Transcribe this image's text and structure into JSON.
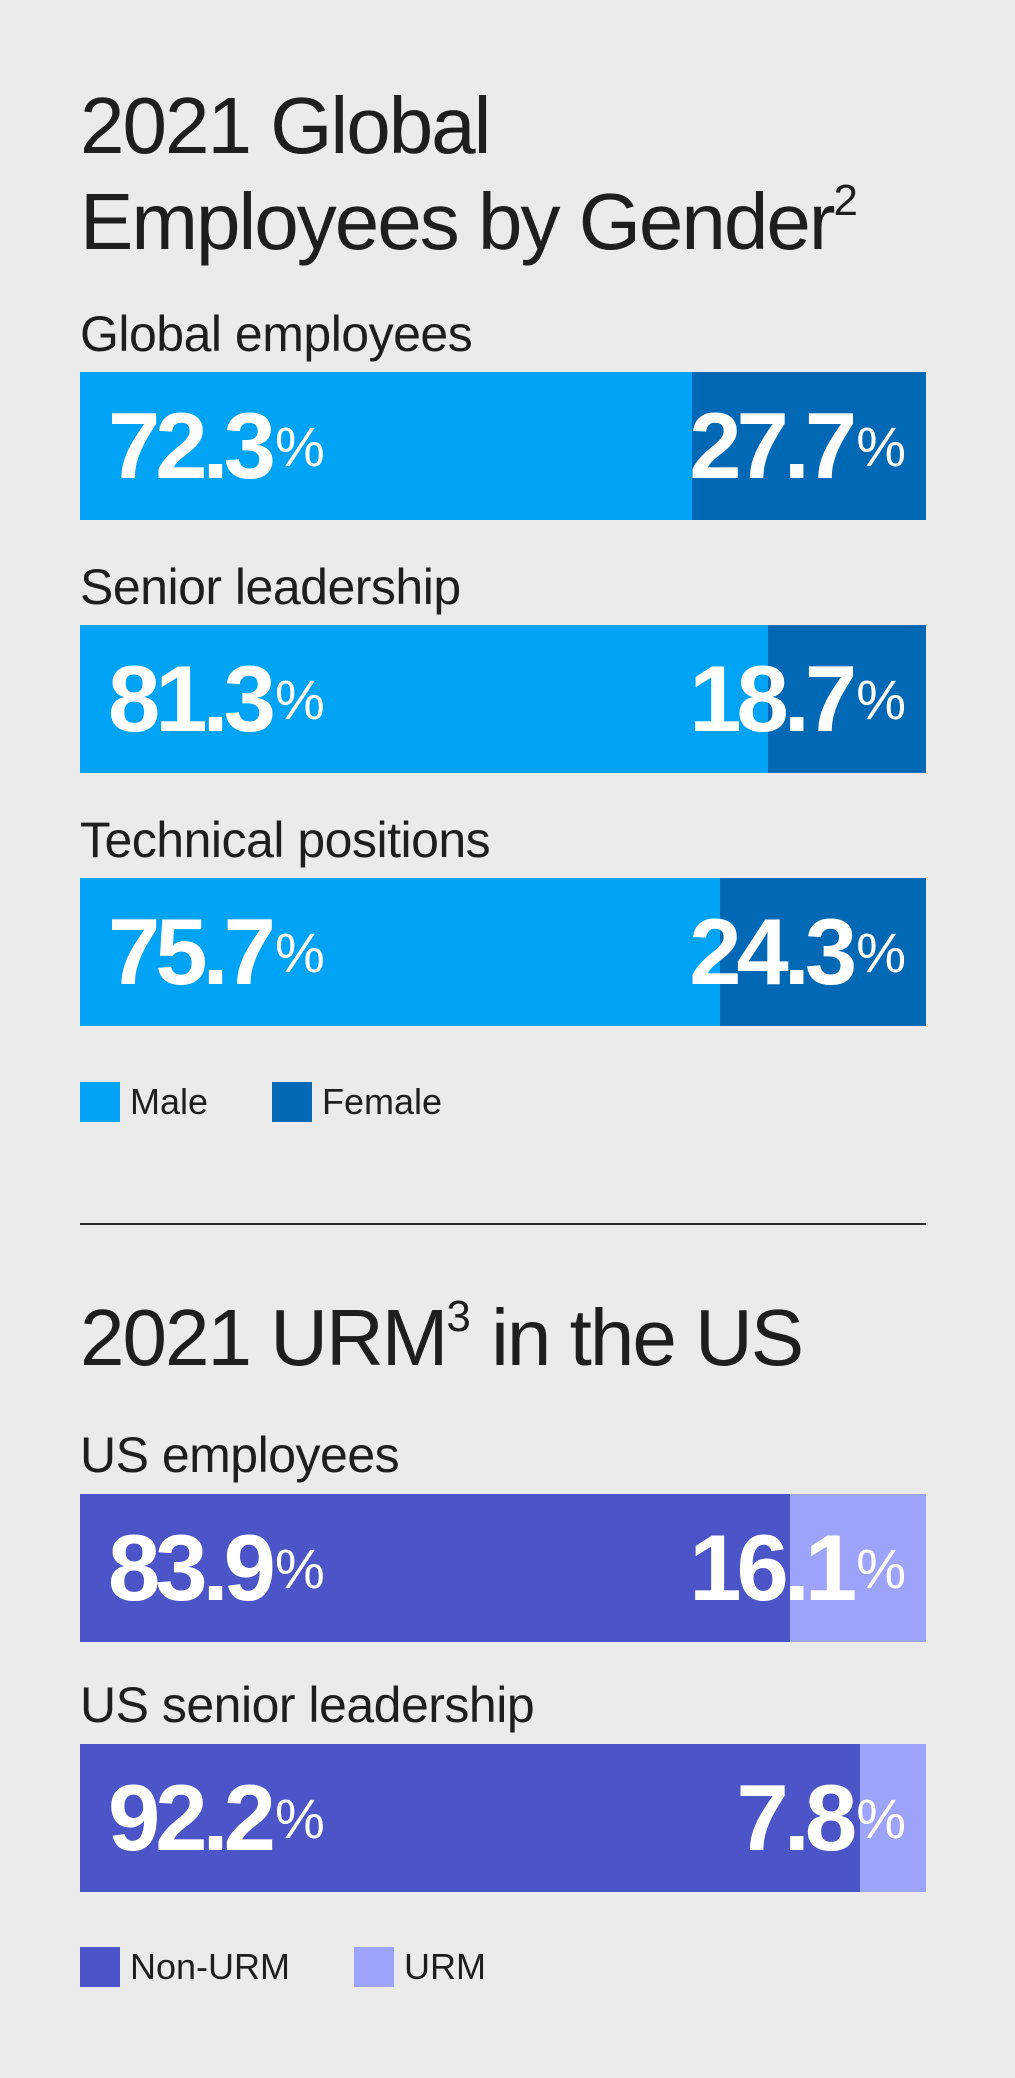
{
  "chart_data": [
    {
      "type": "bar",
      "orientation": "horizontal-stacked-100",
      "title": "2021 Global Employees by Gender",
      "title_line1": "2021 Global",
      "title_line2": "Employees by Gender",
      "title_footnote": "2",
      "categories": [
        "Global employees",
        "Senior leadership",
        "Technical positions"
      ],
      "series": [
        {
          "name": "Male",
          "color": "#00a3f6",
          "values": [
            72.3,
            81.3,
            75.7
          ]
        },
        {
          "name": "Female",
          "color": "#0068b5",
          "values": [
            27.7,
            18.7,
            24.3
          ]
        }
      ],
      "unit": "%",
      "legend_position": "bottom-left"
    },
    {
      "type": "bar",
      "orientation": "horizontal-stacked-100",
      "title": "2021 URM in the US",
      "title_part1": "2021 URM",
      "title_footnote": "3",
      "title_part2": " in the US",
      "categories": [
        "US employees",
        "US senior leadership"
      ],
      "series": [
        {
          "name": "Non-URM",
          "color": "#4c55c8",
          "values": [
            83.9,
            92.2
          ]
        },
        {
          "name": "URM",
          "color": "#9da2fb",
          "values": [
            16.1,
            7.8
          ]
        }
      ],
      "unit": "%",
      "legend_position": "bottom-left"
    }
  ]
}
